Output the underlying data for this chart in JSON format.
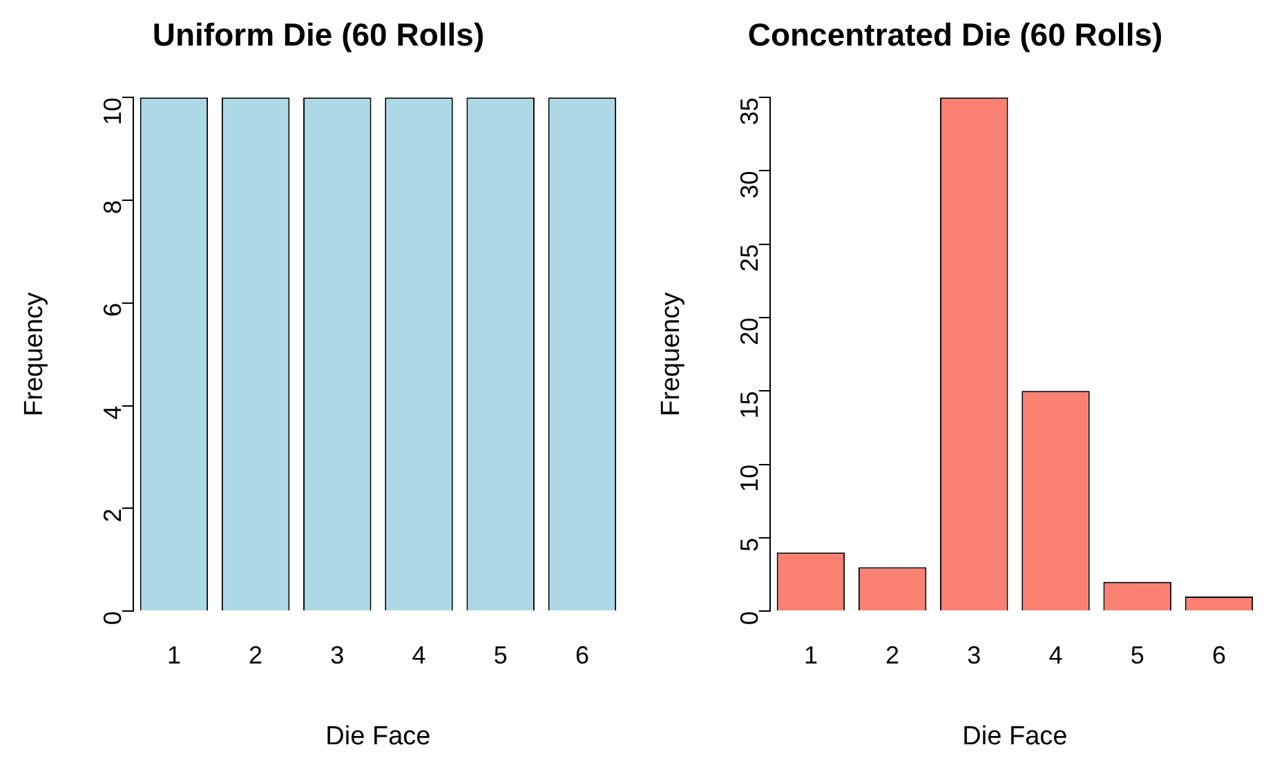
{
  "chart_data": [
    {
      "type": "bar",
      "title": "Uniform Die (60 Rolls)",
      "xlabel": "Die Face",
      "ylabel": "Frequency",
      "categories": [
        "1",
        "2",
        "3",
        "4",
        "5",
        "6"
      ],
      "values": [
        10,
        10,
        10,
        10,
        10,
        10
      ],
      "color": "#add8e6",
      "ylim": [
        0,
        10
      ],
      "yticks": [
        0,
        2,
        4,
        6,
        8,
        10
      ]
    },
    {
      "type": "bar",
      "title": "Concentrated Die (60 Rolls)",
      "xlabel": "Die Face",
      "ylabel": "Frequency",
      "categories": [
        "1",
        "2",
        "3",
        "4",
        "5",
        "6"
      ],
      "values": [
        4,
        3,
        35,
        15,
        2,
        1
      ],
      "color": "#fa8072",
      "ylim": [
        0,
        35
      ],
      "yticks": [
        0,
        5,
        10,
        15,
        20,
        25,
        30,
        35
      ]
    }
  ]
}
